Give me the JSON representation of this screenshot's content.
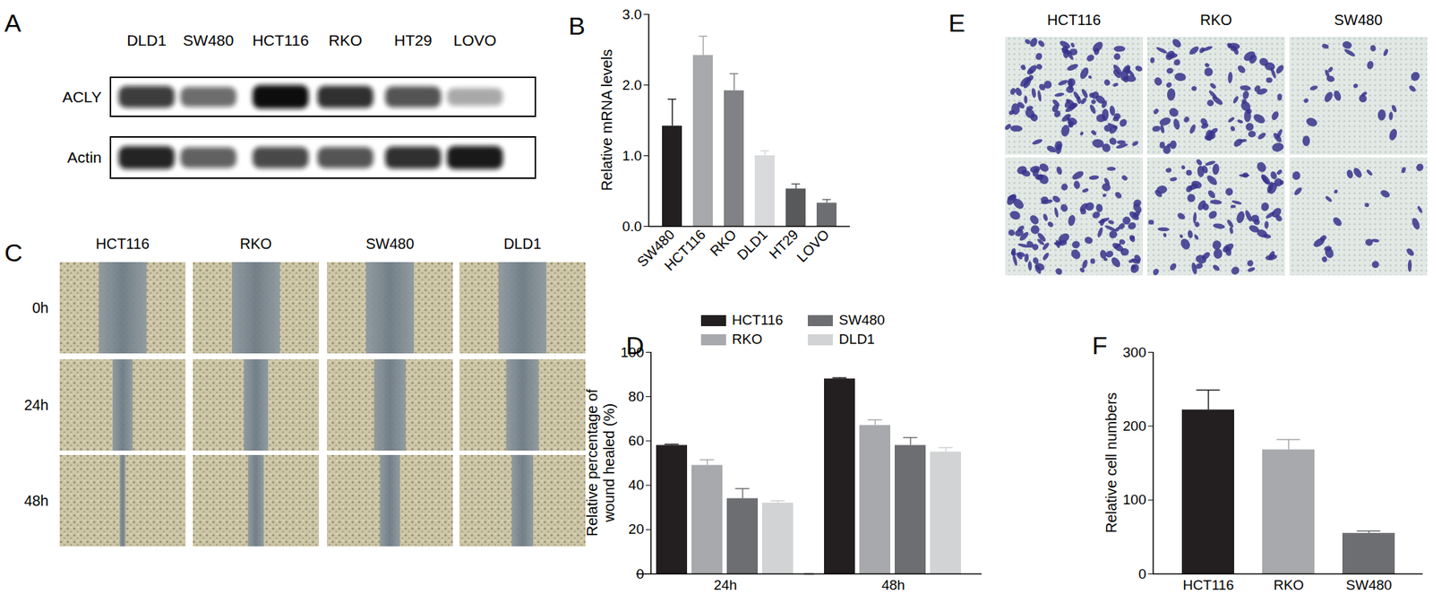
{
  "blot": {
    "panel": "A",
    "lanes": [
      "DLD1",
      "SW480",
      "HCT116",
      "RKO",
      "HT29",
      "LOVO"
    ],
    "rows": [
      {
        "label": "ACLY",
        "band_intensity": [
          0.8,
          0.6,
          1.0,
          0.85,
          0.7,
          0.35
        ]
      },
      {
        "label": "Actin",
        "band_intensity": [
          0.9,
          0.65,
          0.75,
          0.7,
          0.85,
          0.95
        ]
      }
    ]
  },
  "wound_images": {
    "panel": "C",
    "columns": [
      "HCT116",
      "RKO",
      "SW480",
      "DLD1"
    ],
    "rows": [
      "0h",
      "24h",
      "48h"
    ]
  },
  "transwell_images": {
    "panel": "E",
    "columns": [
      "HCT116",
      "RKO",
      "SW480"
    ]
  },
  "chart_data": [
    {
      "panel": "B",
      "type": "bar",
      "categories": [
        "SW480",
        "HCT116",
        "RKO",
        "DLD1",
        "HT29",
        "LOVO"
      ],
      "values": [
        1.42,
        2.42,
        1.92,
        1.0,
        0.53,
        0.33
      ],
      "errors": [
        0.38,
        0.27,
        0.24,
        0.07,
        0.07,
        0.05
      ],
      "colors": [
        "#231f20",
        "#a7a9ac",
        "#808285",
        "#d9dadb",
        "#58595b",
        "#6d6e71"
      ],
      "ylabel": "Relative mRNA levels",
      "ylim": [
        0,
        3
      ],
      "yticks": [
        0,
        1,
        2,
        3
      ]
    },
    {
      "panel": "D",
      "type": "bar",
      "categories": [
        "24h",
        "48h"
      ],
      "series": [
        {
          "name": "HCT116",
          "color": "#231f20",
          "values": [
            58,
            88
          ],
          "errors": [
            0.5,
            0.5
          ]
        },
        {
          "name": "RKO",
          "color": "#a7a9ac",
          "values": [
            49,
            67
          ],
          "errors": [
            2.5,
            2.5
          ]
        },
        {
          "name": "SW480",
          "color": "#6d6e71",
          "values": [
            34,
            58
          ],
          "errors": [
            4.5,
            3.5
          ]
        },
        {
          "name": "DLD1",
          "color": "#d1d3d4",
          "values": [
            32,
            55
          ],
          "errors": [
            1,
            2
          ]
        }
      ],
      "ylabel": "Relative percentage of wound healed (%)",
      "ylim": [
        0,
        100
      ],
      "yticks": [
        0,
        20,
        40,
        60,
        80,
        100
      ],
      "legend": "top"
    },
    {
      "panel": "F",
      "type": "bar",
      "categories": [
        "HCT116",
        "RKO",
        "SW480"
      ],
      "values": [
        222,
        168,
        55
      ],
      "errors": [
        27,
        14,
        3
      ],
      "colors": [
        "#231f20",
        "#a7a9ac",
        "#6d6e71"
      ],
      "ylabel": "Relative cell numbers",
      "ylim": [
        0,
        300
      ],
      "yticks": [
        0,
        100,
        200,
        300
      ]
    }
  ]
}
